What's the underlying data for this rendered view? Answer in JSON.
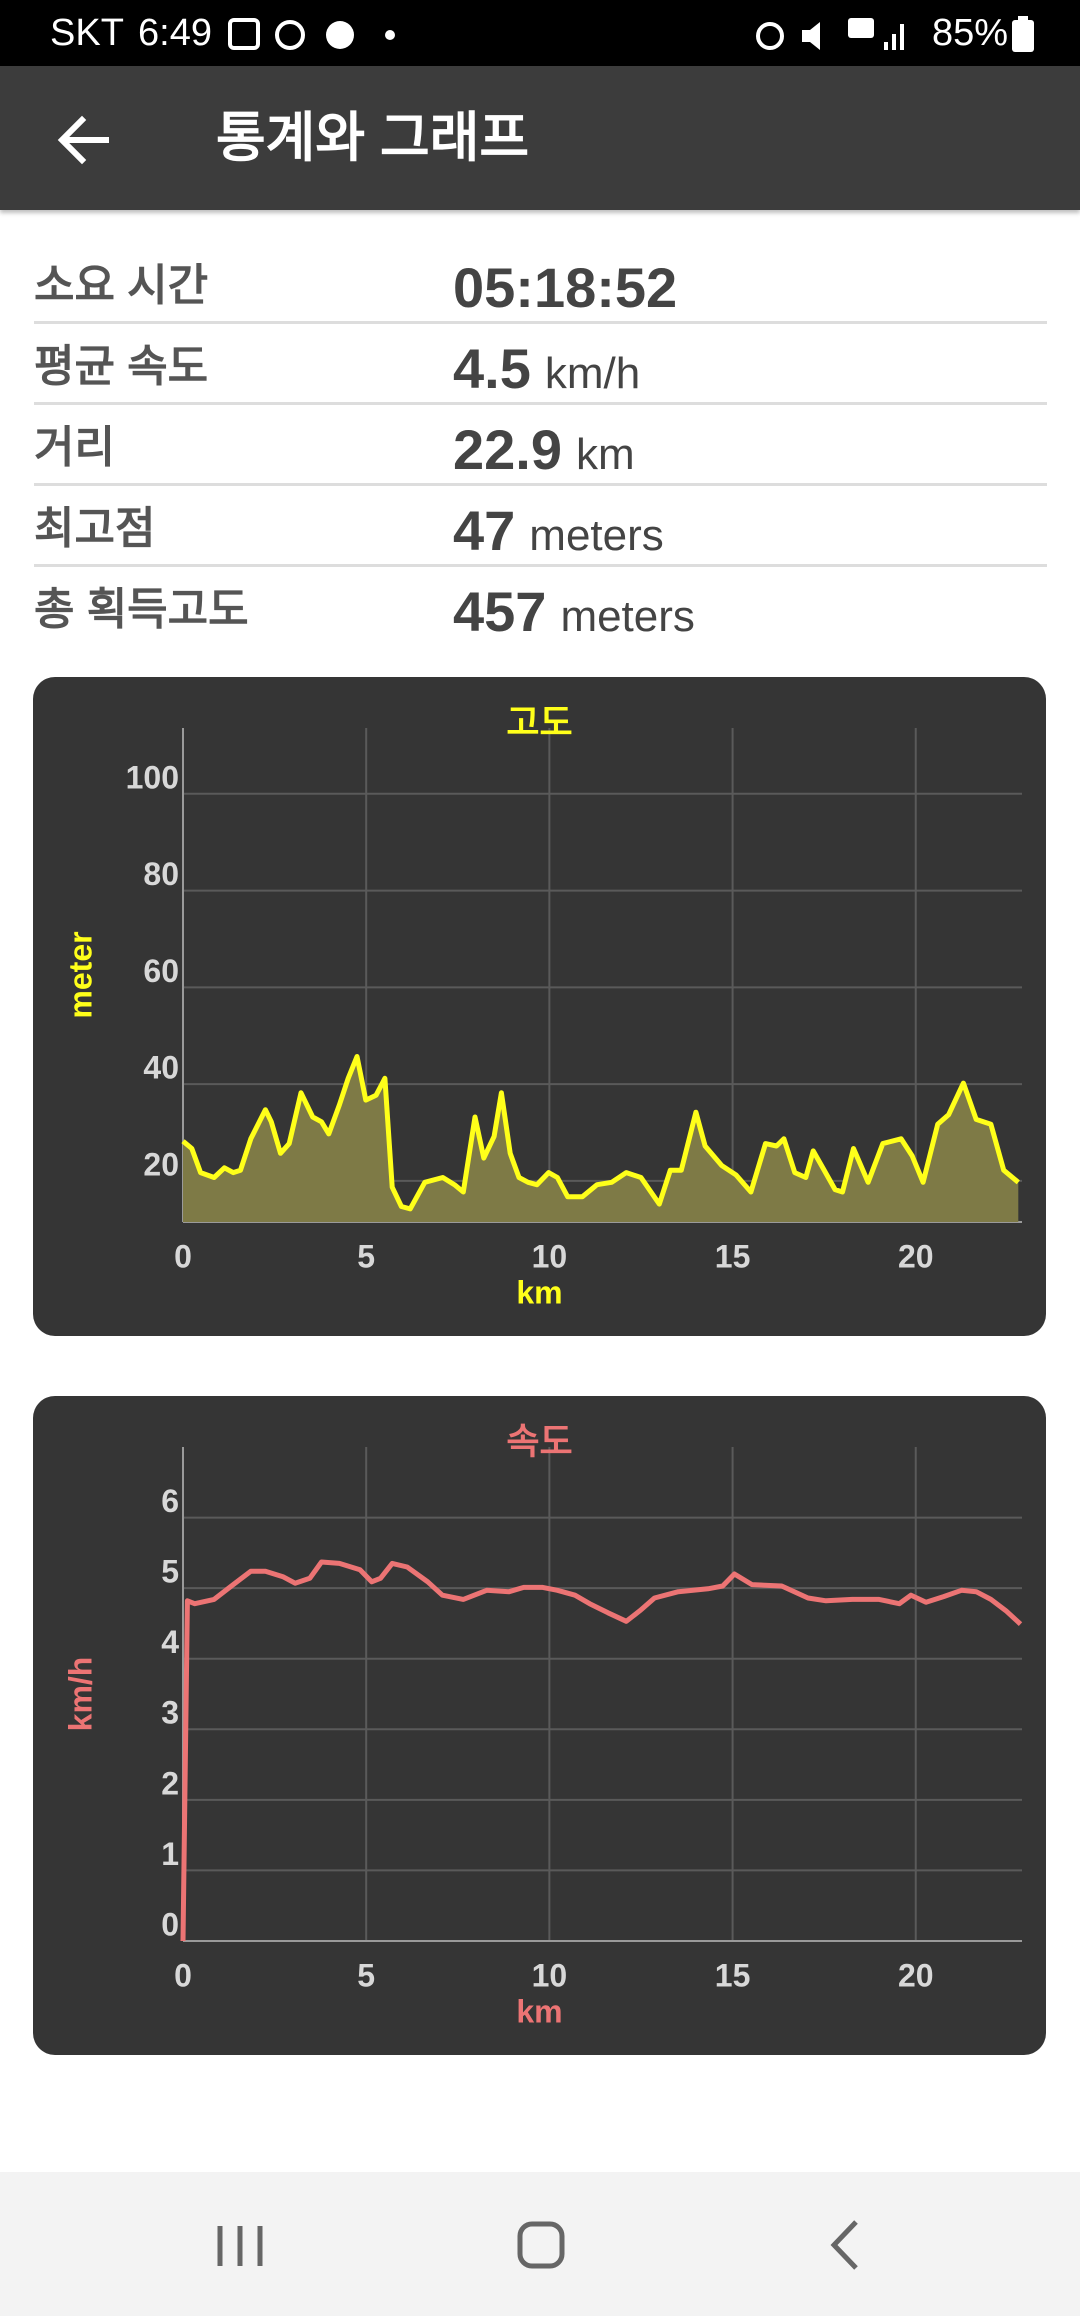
{
  "status_bar": {
    "carrier": "SKT",
    "time": "6:49",
    "battery": "85%"
  },
  "app_bar": {
    "title": "통계와 그래프"
  },
  "stats": [
    {
      "label": "소요 시간",
      "value": "05:18:52"
    },
    {
      "label": "평균 속도",
      "value": 4.5,
      "unit": "km/h"
    },
    {
      "label": "거리",
      "value": 22.9,
      "unit": "km"
    },
    {
      "label": "최고점",
      "value": 47,
      "unit": "meters"
    },
    {
      "label": "총 획득고도",
      "value": 457,
      "unit": "meters"
    }
  ],
  "chart_data": [
    {
      "type": "area",
      "title": "고도",
      "x_label": "km",
      "y_label": "meter",
      "color": "#ffff1a",
      "fill_color": "#7e7a46",
      "label_color": "#ffff1a",
      "grid": true,
      "xlim": [
        0,
        22.9
      ],
      "ylim": [
        11.5,
        113.6
      ],
      "xticks": [
        0,
        5,
        10,
        15,
        20
      ],
      "yticks": [
        20,
        40,
        60,
        80,
        100
      ],
      "x": [
        0,
        0.24,
        0.48,
        0.85,
        1.13,
        1.37,
        1.57,
        1.85,
        2.25,
        2.41,
        2.66,
        2.9,
        3.22,
        3.54,
        3.78,
        3.98,
        4.27,
        4.51,
        4.75,
        4.99,
        5.27,
        5.51,
        5.71,
        5.96,
        6.2,
        6.6,
        7.09,
        7.41,
        7.65,
        7.97,
        8.21,
        8.49,
        8.69,
        8.93,
        9.17,
        9.42,
        9.66,
        9.98,
        10.22,
        10.5,
        10.9,
        11.3,
        11.7,
        12.1,
        12.5,
        13.0,
        13.3,
        13.6,
        14.0,
        14.25,
        14.7,
        15.1,
        15.5,
        15.9,
        16.2,
        16.4,
        16.7,
        17.0,
        17.2,
        17.5,
        17.8,
        18.0,
        18.3,
        18.7,
        19.1,
        19.6,
        19.9,
        20.2,
        20.6,
        20.9,
        21.3,
        21.65,
        22.05,
        22.4,
        22.8
      ],
      "values": [
        28.2,
        26.7,
        21.7,
        20.7,
        22.7,
        21.7,
        22.2,
        28.7,
        34.7,
        32.2,
        25.7,
        27.7,
        38.2,
        33.2,
        32.2,
        29.7,
        35.7,
        41.2,
        45.7,
        36.7,
        37.7,
        41.2,
        18.7,
        14.7,
        14.2,
        19.7,
        20.7,
        19.2,
        17.7,
        33.2,
        24.7,
        29.2,
        38.2,
        25.7,
        20.7,
        19.7,
        19.2,
        21.7,
        20.7,
        16.7,
        16.7,
        19.2,
        19.7,
        21.7,
        20.7,
        15.2,
        22.2,
        22.2,
        34.2,
        27.2,
        23.2,
        21.2,
        17.7,
        27.7,
        27.2,
        28.7,
        21.7,
        20.7,
        26.2,
        22.2,
        18.2,
        17.7,
        26.7,
        19.7,
        27.7,
        28.7,
        25.2,
        19.7,
        31.7,
        33.7,
        40.2,
        32.7,
        31.7,
        22.2,
        19.7
      ]
    },
    {
      "type": "line",
      "title": "속도",
      "x_label": "km",
      "y_label": "km/h",
      "color": "#ec7474",
      "label_color": "#ec7474",
      "grid": true,
      "xlim": [
        0,
        22.9
      ],
      "ylim": [
        0,
        7
      ],
      "xticks": [
        0,
        5,
        10,
        15,
        20
      ],
      "yticks": [
        0,
        1,
        2,
        3,
        4,
        5,
        6
      ],
      "x": [
        0,
        0.12,
        0.32,
        0.85,
        1.37,
        1.85,
        2.25,
        2.74,
        3.06,
        3.46,
        3.78,
        4.27,
        4.83,
        5.15,
        5.39,
        5.71,
        6.12,
        6.68,
        7.08,
        7.65,
        8.29,
        8.9,
        9.3,
        9.82,
        10.22,
        10.7,
        11.1,
        11.6,
        12.1,
        12.47,
        12.87,
        13.52,
        14.33,
        14.73,
        15.05,
        15.53,
        16.34,
        17.06,
        17.55,
        18.27,
        19.0,
        19.55,
        19.87,
        20.28,
        20.76,
        21.25,
        21.65,
        22.05,
        22.46,
        22.86
      ],
      "values": [
        0,
        4.82,
        4.78,
        4.84,
        5.05,
        5.24,
        5.24,
        5.16,
        5.07,
        5.14,
        5.37,
        5.35,
        5.26,
        5.09,
        5.14,
        5.35,
        5.3,
        5.09,
        4.9,
        4.84,
        4.97,
        4.95,
        5.01,
        5.01,
        4.97,
        4.9,
        4.78,
        4.65,
        4.53,
        4.68,
        4.86,
        4.95,
        4.99,
        5.03,
        5.2,
        5.05,
        5.03,
        4.86,
        4.82,
        4.84,
        4.84,
        4.78,
        4.9,
        4.8,
        4.88,
        4.97,
        4.95,
        4.84,
        4.68,
        4.49
      ]
    }
  ]
}
